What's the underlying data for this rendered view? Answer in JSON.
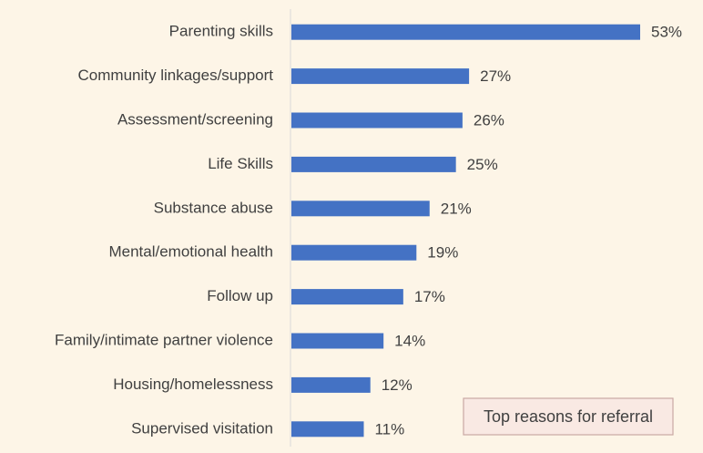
{
  "chart_data": {
    "type": "bar",
    "orientation": "horizontal",
    "categories": [
      "Parenting skills",
      "Community linkages/support",
      "Assessment/screening",
      "Life Skills",
      "Substance abuse",
      "Mental/emotional health",
      "Follow up",
      "Family/intimate partner violence",
      "Housing/homelessness",
      "Supervised visitation"
    ],
    "values": [
      53,
      27,
      26,
      25,
      21,
      19,
      17,
      14,
      12,
      11
    ],
    "value_labels": [
      "53%",
      "27%",
      "26%",
      "25%",
      "21%",
      "19%",
      "17%",
      "14%",
      "12%",
      "11%"
    ],
    "color": "#4472c4",
    "annotation": "Top reasons for referral"
  }
}
